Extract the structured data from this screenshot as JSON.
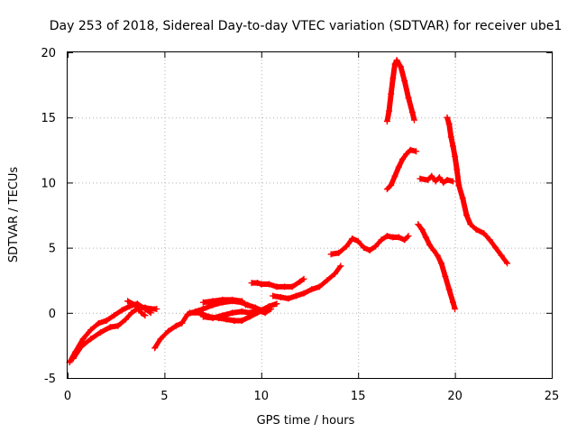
{
  "chart_data": {
    "type": "scatter",
    "title": "Day 253 of 2018, Sidereal Day-to-day VTEC variation (SDTVAR) for receiver ube1",
    "xlabel": "GPS time / hours",
    "ylabel": "SDTVAR / TECUs",
    "xlim": [
      0,
      25
    ],
    "ylim": [
      -5,
      20
    ],
    "xticks": [
      "0",
      "5",
      "10",
      "15",
      "20",
      "25"
    ],
    "yticks": [
      "-5",
      "0",
      "5",
      "10",
      "15",
      "20"
    ],
    "grid": true,
    "marker": "+",
    "series": [
      {
        "color": "#ff0000",
        "segments": [
          [
            [
              0.1,
              -3.8
            ],
            [
              0.4,
              -3.0
            ],
            [
              0.8,
              -2.0
            ],
            [
              1.2,
              -1.3
            ],
            [
              1.6,
              -0.8
            ],
            [
              2.0,
              -0.6
            ],
            [
              2.4,
              -0.2
            ],
            [
              2.8,
              0.2
            ],
            [
              3.2,
              0.5
            ],
            [
              3.6,
              0.7
            ],
            [
              4.0,
              0.3
            ],
            [
              4.3,
              0.0
            ]
          ],
          [
            [
              0.3,
              -3.5
            ],
            [
              0.7,
              -2.6
            ],
            [
              1.2,
              -2.0
            ],
            [
              1.7,
              -1.5
            ],
            [
              2.2,
              -1.1
            ],
            [
              2.6,
              -1.0
            ],
            [
              3.0,
              -0.5
            ],
            [
              3.3,
              0.0
            ],
            [
              3.7,
              0.4
            ],
            [
              4.0,
              0.4
            ],
            [
              4.3,
              0.3
            ],
            [
              4.6,
              0.3
            ]
          ],
          [
            [
              3.1,
              0.9
            ],
            [
              3.5,
              0.6
            ],
            [
              3.8,
              0.0
            ],
            [
              4.0,
              -0.2
            ]
          ],
          [
            [
              4.5,
              -2.7
            ],
            [
              4.8,
              -2.0
            ],
            [
              5.2,
              -1.4
            ],
            [
              5.6,
              -1.0
            ],
            [
              5.9,
              -0.8
            ],
            [
              6.2,
              -0.1
            ],
            [
              6.6,
              0.1
            ],
            [
              7.0,
              0.3
            ],
            [
              7.5,
              0.6
            ],
            [
              8.0,
              0.8
            ],
            [
              8.5,
              0.9
            ],
            [
              9.0,
              0.8
            ],
            [
              9.3,
              0.6
            ],
            [
              9.7,
              0.4
            ],
            [
              10.0,
              0.2
            ],
            [
              10.4,
              0.5
            ],
            [
              10.8,
              0.7
            ]
          ],
          [
            [
              6.3,
              0.0
            ],
            [
              6.8,
              0.0
            ],
            [
              7.3,
              -0.3
            ],
            [
              7.8,
              -0.4
            ],
            [
              8.2,
              -0.5
            ],
            [
              8.6,
              -0.6
            ],
            [
              9.0,
              -0.6
            ],
            [
              9.4,
              -0.3
            ],
            [
              9.8,
              0.0
            ],
            [
              10.2,
              0.3
            ],
            [
              10.5,
              0.5
            ]
          ],
          [
            [
              7.0,
              -0.3
            ],
            [
              7.5,
              -0.4
            ],
            [
              8.0,
              -0.2
            ],
            [
              8.5,
              0.0
            ],
            [
              9.0,
              0.1
            ],
            [
              9.4,
              0.0
            ],
            [
              9.8,
              0.2
            ],
            [
              10.2,
              0.0
            ],
            [
              10.5,
              0.3
            ]
          ],
          [
            [
              7.0,
              0.8
            ],
            [
              7.5,
              0.9
            ],
            [
              8.0,
              1.0
            ],
            [
              8.5,
              1.0
            ],
            [
              9.0,
              0.9
            ],
            [
              9.2,
              0.6
            ]
          ],
          [
            [
              9.5,
              2.3
            ],
            [
              9.8,
              2.3
            ],
            [
              10.0,
              2.2
            ],
            [
              10.4,
              2.2
            ],
            [
              10.8,
              2.0
            ],
            [
              11.2,
              2.0
            ],
            [
              11.6,
              2.0
            ],
            [
              12.0,
              2.4
            ],
            [
              12.2,
              2.6
            ]
          ],
          [
            [
              10.6,
              1.3
            ],
            [
              11.0,
              1.2
            ],
            [
              11.4,
              1.1
            ],
            [
              11.8,
              1.3
            ],
            [
              12.2,
              1.5
            ],
            [
              12.6,
              1.8
            ],
            [
              13.0,
              2.0
            ],
            [
              13.4,
              2.5
            ],
            [
              13.8,
              3.0
            ],
            [
              14.1,
              3.6
            ]
          ],
          [
            [
              13.6,
              4.5
            ],
            [
              14.0,
              4.6
            ],
            [
              14.4,
              5.1
            ],
            [
              14.7,
              5.7
            ],
            [
              15.0,
              5.5
            ],
            [
              15.3,
              5.0
            ],
            [
              15.6,
              4.8
            ],
            [
              15.9,
              5.1
            ],
            [
              16.2,
              5.6
            ],
            [
              16.5,
              5.9
            ],
            [
              16.8,
              5.8
            ],
            [
              17.1,
              5.8
            ],
            [
              17.4,
              5.6
            ],
            [
              17.6,
              5.9
            ]
          ],
          [
            [
              16.5,
              9.5
            ],
            [
              16.7,
              9.8
            ],
            [
              16.9,
              10.5
            ],
            [
              17.1,
              11.2
            ],
            [
              17.3,
              11.8
            ],
            [
              17.5,
              12.2
            ],
            [
              17.7,
              12.5
            ],
            [
              18.0,
              12.4
            ]
          ],
          [
            [
              16.5,
              14.7
            ],
            [
              16.6,
              15.5
            ],
            [
              16.7,
              16.8
            ],
            [
              16.8,
              18.0
            ],
            [
              16.9,
              19.1
            ],
            [
              17.0,
              19.4
            ],
            [
              17.2,
              18.9
            ],
            [
              17.4,
              17.8
            ],
            [
              17.6,
              16.5
            ],
            [
              17.8,
              15.4
            ],
            [
              17.9,
              14.8
            ]
          ],
          [
            [
              18.2,
              10.3
            ],
            [
              18.6,
              10.2
            ],
            [
              18.8,
              10.5
            ],
            [
              19.0,
              10.1
            ],
            [
              19.2,
              10.4
            ],
            [
              19.4,
              10.0
            ],
            [
              19.6,
              10.2
            ],
            [
              19.9,
              10.1
            ]
          ],
          [
            [
              19.6,
              15.0
            ],
            [
              19.7,
              14.5
            ],
            [
              19.8,
              13.5
            ],
            [
              19.9,
              12.8
            ],
            [
              20.0,
              12.0
            ],
            [
              20.1,
              11.0
            ],
            [
              20.2,
              9.8
            ],
            [
              20.4,
              8.8
            ],
            [
              20.6,
              7.5
            ],
            [
              20.8,
              6.8
            ],
            [
              21.1,
              6.4
            ],
            [
              21.5,
              6.1
            ],
            [
              21.8,
              5.6
            ],
            [
              22.1,
              5.0
            ],
            [
              22.4,
              4.4
            ],
            [
              22.7,
              3.8
            ]
          ],
          [
            [
              18.1,
              6.8
            ],
            [
              18.3,
              6.4
            ],
            [
              18.5,
              5.8
            ],
            [
              18.7,
              5.2
            ],
            [
              18.9,
              4.8
            ],
            [
              19.1,
              4.4
            ],
            [
              19.3,
              3.8
            ],
            [
              19.5,
              2.8
            ],
            [
              19.7,
              1.8
            ],
            [
              19.9,
              0.8
            ],
            [
              20.0,
              0.3
            ]
          ]
        ]
      }
    ]
  }
}
